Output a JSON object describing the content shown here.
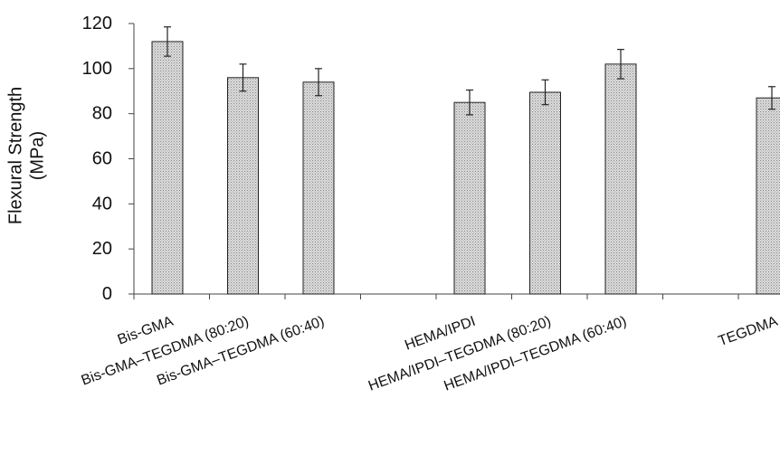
{
  "chart_data": {
    "type": "bar",
    "title": "",
    "xlabel": "",
    "ylabel": [
      "Flexural Strength",
      "(MPa)"
    ],
    "ylim": [
      0,
      120
    ],
    "yticks": [
      0,
      20,
      40,
      60,
      80,
      100,
      120
    ],
    "grid": false,
    "legend": "none",
    "categories": [
      "Bis-GMA",
      "Bis-GMA–TEGDMA (80:20)",
      "Bis-GMA–TEGDMA (60:40)",
      "",
      "HEMA/IPDI",
      "HEMA/IPDI–TEGDMA  (80:20)",
      "HEMA/IPDI–TEGDMA (60:40)",
      "",
      "TEGDMA"
    ],
    "values": [
      112,
      96,
      94,
      null,
      85,
      89.5,
      102,
      null,
      87
    ],
    "errors": [
      6.5,
      6,
      6,
      null,
      5.5,
      5.5,
      6.5,
      null,
      5
    ],
    "colors": {
      "bar_fill": "#cfcfcf",
      "bar_stroke": "#222222",
      "axis": "#444444"
    }
  }
}
